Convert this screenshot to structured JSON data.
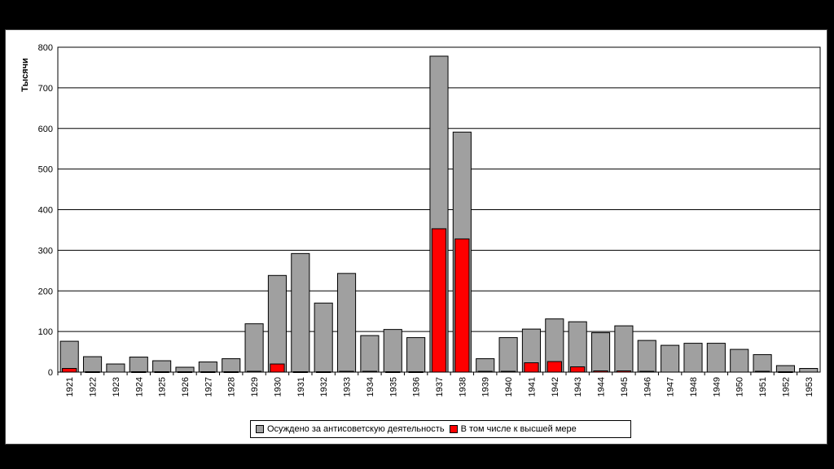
{
  "chart_data": {
    "type": "bar",
    "title": "",
    "ylabel": "Тысячи",
    "xlabel": "",
    "ylim": [
      0,
      800
    ],
    "yticks": [
      0,
      100,
      200,
      300,
      400,
      500,
      600,
      700,
      800
    ],
    "grid": true,
    "legend_position": "bottom",
    "categories": [
      "1921",
      "1922",
      "1923",
      "1924",
      "1925",
      "1926",
      "1927",
      "1928",
      "1929",
      "1930",
      "1931",
      "1932",
      "1933",
      "1934",
      "1935",
      "1936",
      "1937",
      "1938",
      "1939",
      "1940",
      "1941",
      "1942",
      "1943",
      "1944",
      "1945",
      "1946",
      "1947",
      "1948",
      "1949",
      "1950",
      "1951",
      "1952",
      "1953"
    ],
    "series": [
      {
        "name": "Осуждено за антисоветскую деятельность",
        "color": "#a0a0a0",
        "values": [
          76,
          38,
          20,
          37,
          28,
          12,
          25,
          33,
          119,
          238,
          292,
          170,
          243,
          90,
          105,
          85,
          778,
          591,
          33,
          85,
          106,
          131,
          124,
          97,
          114,
          78,
          66,
          71,
          71,
          56,
          43,
          16,
          9
        ]
      },
      {
        "name": "В том числе к высшей мере",
        "color": "#ff0000",
        "values": [
          9,
          1,
          0,
          1,
          1,
          1,
          1,
          1,
          2,
          20,
          1,
          1,
          2,
          2,
          1,
          1,
          353,
          328,
          2,
          2,
          23,
          26,
          13,
          3,
          3,
          2,
          0,
          0,
          0,
          0,
          2,
          1,
          0
        ]
      }
    ]
  }
}
